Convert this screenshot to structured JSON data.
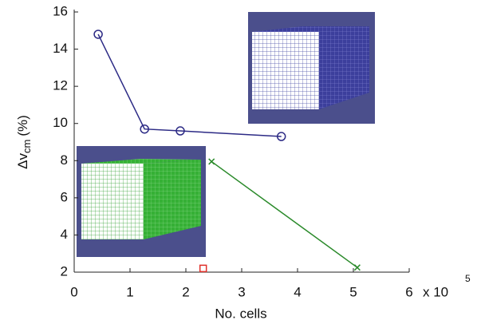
{
  "chart_data": {
    "type": "line",
    "xlabel": "No. cells",
    "x_multiplier": "x 10",
    "x_exponent": "5",
    "ylabel_main": "Δv",
    "ylabel_sub": "cm",
    "ylabel_unit": "(%)",
    "xlim": [
      0,
      6
    ],
    "xticks": [
      0,
      1,
      2,
      3,
      4,
      5,
      6
    ],
    "ylim": [
      2,
      16
    ],
    "yticks": [
      2,
      4,
      6,
      8,
      10,
      12,
      14,
      16
    ],
    "series": [
      {
        "color": "#2c2a85",
        "marker": "circle",
        "x": [
          0.43,
          1.26,
          1.9,
          3.71
        ],
        "values": [
          14.8,
          9.7,
          9.6,
          9.3
        ]
      },
      {
        "color": "#2a8a2a",
        "marker": "x",
        "x": [
          2.46,
          5.07
        ],
        "values": [
          7.95,
          2.25
        ]
      },
      {
        "color": "#e0302a",
        "marker": "square",
        "x": [
          2.31
        ],
        "values": [
          2.2
        ]
      }
    ]
  }
}
